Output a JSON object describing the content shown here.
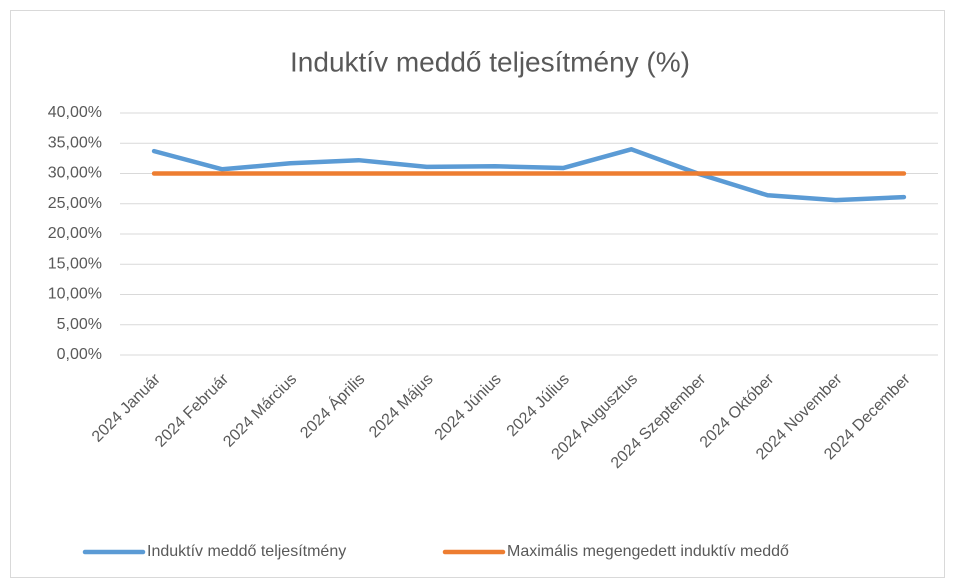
{
  "chart_data": {
    "type": "line",
    "title": "Induktív meddő teljesítmény (%)",
    "categories": [
      "2024 Január",
      "2024 Február",
      "2024 Március",
      "2024 Április",
      "2024 Május",
      "2024 Június",
      "2024 Július",
      "2024 Augusztus",
      "2024 Szeptember",
      "2024 Október",
      "2024 November",
      "2024 December"
    ],
    "series": [
      {
        "name": "Induktív meddő teljesítmény",
        "color": "#5b9bd5",
        "values": [
          33.7,
          30.7,
          31.7,
          32.2,
          31.1,
          31.2,
          30.9,
          34.0,
          29.9,
          26.4,
          25.6,
          26.1
        ]
      },
      {
        "name": "Maximális megengedett induktív meddő",
        "color": "#ed7d31",
        "values": [
          30,
          30,
          30,
          30,
          30,
          30,
          30,
          30,
          30,
          30,
          30,
          30
        ]
      }
    ],
    "ylim": [
      0,
      40
    ],
    "yticks": [
      {
        "value": 0,
        "label": "0,00%"
      },
      {
        "value": 5,
        "label": "5,00%"
      },
      {
        "value": 10,
        "label": "10,00%"
      },
      {
        "value": 15,
        "label": "15,00%"
      },
      {
        "value": 20,
        "label": "20,00%"
      },
      {
        "value": 25,
        "label": "25,00%"
      },
      {
        "value": 30,
        "label": "30,00%"
      },
      {
        "value": 35,
        "label": "35,00%"
      },
      {
        "value": 40,
        "label": "40,00%"
      }
    ],
    "grid": true,
    "legend": "bottom"
  }
}
